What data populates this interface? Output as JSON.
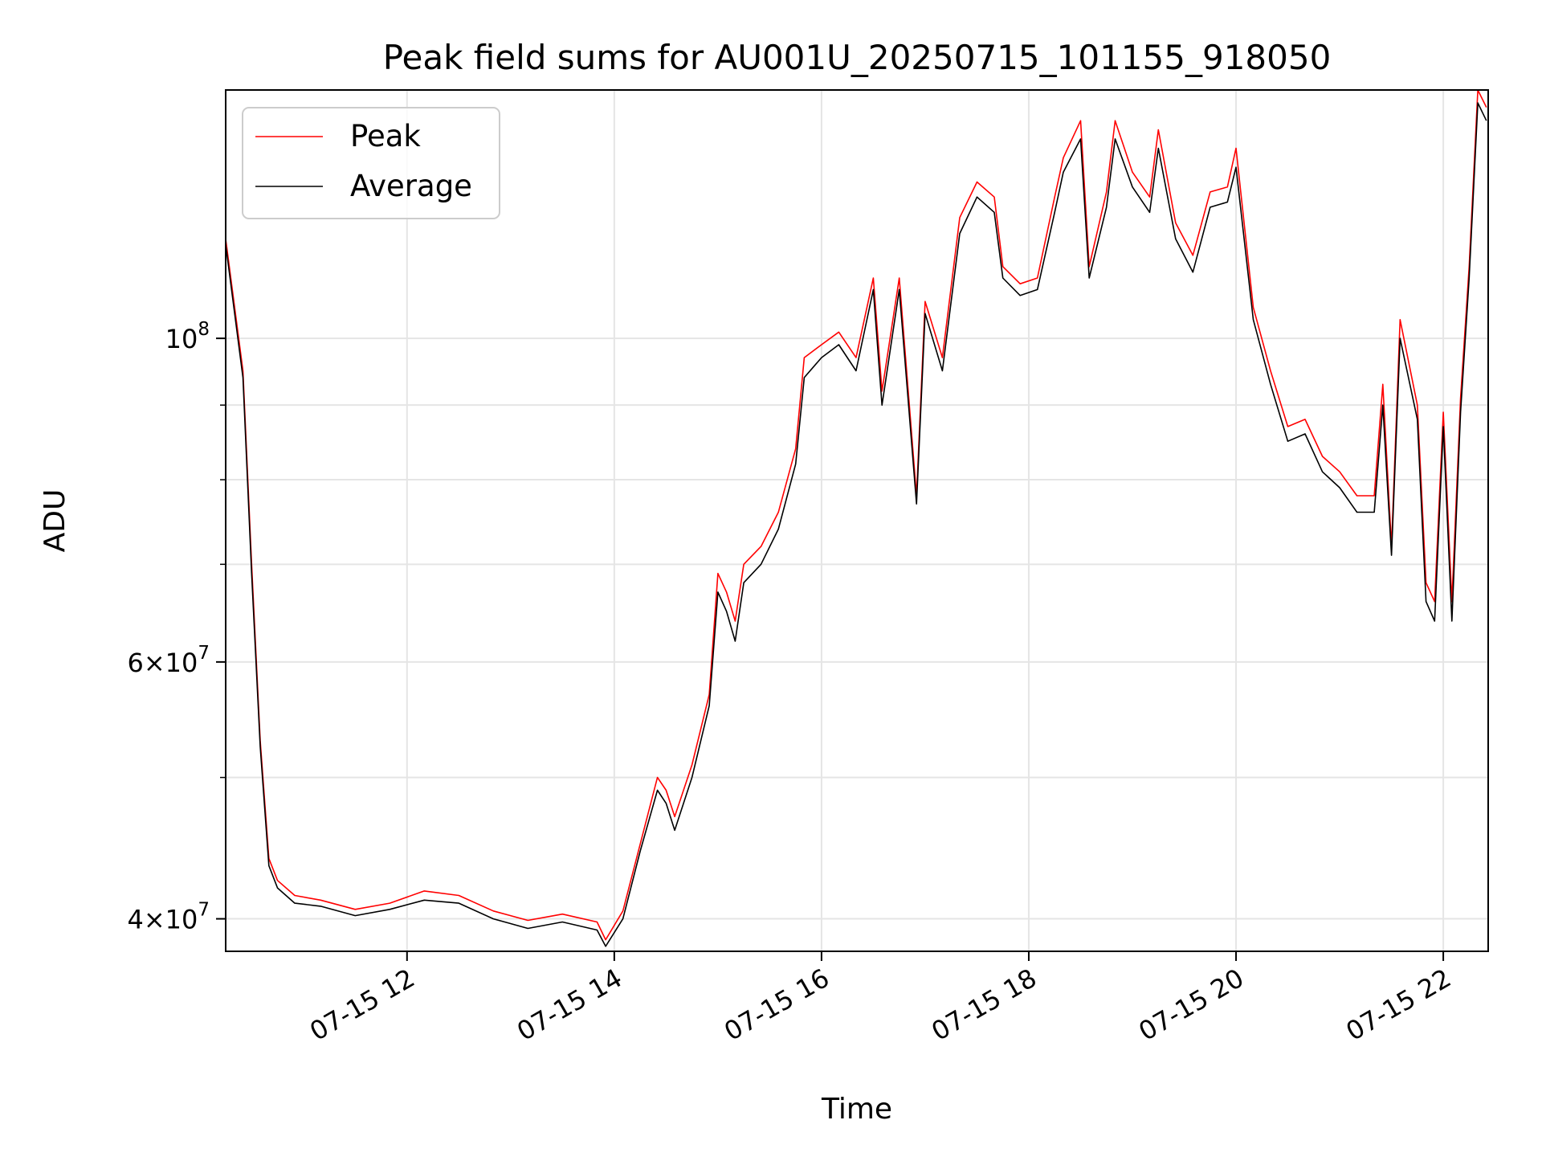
{
  "chart_data": {
    "type": "line",
    "title": "Peak field sums for AU001U_20250715_101155_918050",
    "xlabel": "Time",
    "ylabel": "ADU",
    "yscale": "log",
    "grid": true,
    "legend_position": "top-left",
    "xlim": [
      "2025-07-15 10:15",
      "2025-07-15 22:26"
    ],
    "ylim": [
      38000000,
      148000000
    ],
    "x_ticks": [
      {
        "value": "2025-07-15 12:00",
        "label": "07-15 12"
      },
      {
        "value": "2025-07-15 14:00",
        "label": "07-15 14"
      },
      {
        "value": "2025-07-15 16:00",
        "label": "07-15 16"
      },
      {
        "value": "2025-07-15 18:00",
        "label": "07-15 18"
      },
      {
        "value": "2025-07-15 20:00",
        "label": "07-15 20"
      },
      {
        "value": "2025-07-15 22:00",
        "label": "07-15 22"
      }
    ],
    "y_ticks": [
      {
        "value": 40000000,
        "base": "4",
        "mult": "×",
        "exp_base": "10",
        "exp": "7"
      },
      {
        "value": 60000000,
        "base": "6",
        "mult": "×",
        "exp_base": "10",
        "exp": "7"
      },
      {
        "value": 100000000,
        "base": "",
        "mult": "",
        "exp_base": "10",
        "exp": "8"
      }
    ],
    "y_minor_ticks": [
      50000000,
      70000000,
      80000000,
      90000000
    ],
    "series": [
      {
        "name": "Peak",
        "color": "#ff0000",
        "x": [
          "2025-07-15 10:15",
          "2025-07-15 10:25",
          "2025-07-15 10:30",
          "2025-07-15 10:35",
          "2025-07-15 10:40",
          "2025-07-15 10:45",
          "2025-07-15 10:55",
          "2025-07-15 11:10",
          "2025-07-15 11:30",
          "2025-07-15 11:50",
          "2025-07-15 12:10",
          "2025-07-15 12:30",
          "2025-07-15 12:50",
          "2025-07-15 13:10",
          "2025-07-15 13:30",
          "2025-07-15 13:50",
          "2025-07-15 13:55",
          "2025-07-15 14:05",
          "2025-07-15 14:15",
          "2025-07-15 14:25",
          "2025-07-15 14:30",
          "2025-07-15 14:35",
          "2025-07-15 14:45",
          "2025-07-15 14:55",
          "2025-07-15 15:00",
          "2025-07-15 15:05",
          "2025-07-15 15:10",
          "2025-07-15 15:15",
          "2025-07-15 15:25",
          "2025-07-15 15:35",
          "2025-07-15 15:45",
          "2025-07-15 15:50",
          "2025-07-15 16:00",
          "2025-07-15 16:10",
          "2025-07-15 16:20",
          "2025-07-15 16:30",
          "2025-07-15 16:35",
          "2025-07-15 16:45",
          "2025-07-15 16:55",
          "2025-07-15 17:00",
          "2025-07-15 17:10",
          "2025-07-15 17:20",
          "2025-07-15 17:30",
          "2025-07-15 17:40",
          "2025-07-15 17:45",
          "2025-07-15 17:55",
          "2025-07-15 18:05",
          "2025-07-15 18:15",
          "2025-07-15 18:20",
          "2025-07-15 18:30",
          "2025-07-15 18:35",
          "2025-07-15 18:45",
          "2025-07-15 18:50",
          "2025-07-15 19:00",
          "2025-07-15 19:10",
          "2025-07-15 19:15",
          "2025-07-15 19:25",
          "2025-07-15 19:35",
          "2025-07-15 19:45",
          "2025-07-15 19:55",
          "2025-07-15 20:00",
          "2025-07-15 20:10",
          "2025-07-15 20:20",
          "2025-07-15 20:30",
          "2025-07-15 20:40",
          "2025-07-15 20:50",
          "2025-07-15 21:00",
          "2025-07-15 21:10",
          "2025-07-15 21:20",
          "2025-07-15 21:25",
          "2025-07-15 21:30",
          "2025-07-15 21:35",
          "2025-07-15 21:45",
          "2025-07-15 21:50",
          "2025-07-15 21:55",
          "2025-07-15 22:00",
          "2025-07-15 22:05",
          "2025-07-15 22:10",
          "2025-07-15 22:15",
          "2025-07-15 22:20",
          "2025-07-15 22:25"
        ],
        "y": [
          117000000,
          95000000,
          70000000,
          53000000,
          44000000,
          42500000,
          41500000,
          41200000,
          40600000,
          41000000,
          41800000,
          41500000,
          40500000,
          39900000,
          40300000,
          39800000,
          38700000,
          40500000,
          45000000,
          50000000,
          49000000,
          47000000,
          51000000,
          57000000,
          69000000,
          67000000,
          64000000,
          70000000,
          72000000,
          76000000,
          84000000,
          97000000,
          99000000,
          101000000,
          97000000,
          110000000,
          92000000,
          110000000,
          78000000,
          106000000,
          97000000,
          121000000,
          128000000,
          125000000,
          112000000,
          109000000,
          110000000,
          125000000,
          133000000,
          141000000,
          112000000,
          126000000,
          141000000,
          130000000,
          125000000,
          139000000,
          120000000,
          114000000,
          126000000,
          127000000,
          135000000,
          105000000,
          95000000,
          87000000,
          88000000,
          83000000,
          81000000,
          78000000,
          78000000,
          93000000,
          72000000,
          103000000,
          90000000,
          68000000,
          66000000,
          89000000,
          66000000,
          91000000,
          112000000,
          148000000,
          144000000
        ]
      },
      {
        "name": "Average",
        "color": "#000000",
        "x": [
          "2025-07-15 10:15",
          "2025-07-15 10:25",
          "2025-07-15 10:30",
          "2025-07-15 10:35",
          "2025-07-15 10:40",
          "2025-07-15 10:45",
          "2025-07-15 10:55",
          "2025-07-15 11:10",
          "2025-07-15 11:30",
          "2025-07-15 11:50",
          "2025-07-15 12:10",
          "2025-07-15 12:30",
          "2025-07-15 12:50",
          "2025-07-15 13:10",
          "2025-07-15 13:30",
          "2025-07-15 13:50",
          "2025-07-15 13:55",
          "2025-07-15 14:05",
          "2025-07-15 14:15",
          "2025-07-15 14:25",
          "2025-07-15 14:30",
          "2025-07-15 14:35",
          "2025-07-15 14:45",
          "2025-07-15 14:55",
          "2025-07-15 15:00",
          "2025-07-15 15:05",
          "2025-07-15 15:10",
          "2025-07-15 15:15",
          "2025-07-15 15:25",
          "2025-07-15 15:35",
          "2025-07-15 15:45",
          "2025-07-15 15:50",
          "2025-07-15 16:00",
          "2025-07-15 16:10",
          "2025-07-15 16:20",
          "2025-07-15 16:30",
          "2025-07-15 16:35",
          "2025-07-15 16:45",
          "2025-07-15 16:55",
          "2025-07-15 17:00",
          "2025-07-15 17:10",
          "2025-07-15 17:20",
          "2025-07-15 17:30",
          "2025-07-15 17:40",
          "2025-07-15 17:45",
          "2025-07-15 17:55",
          "2025-07-15 18:05",
          "2025-07-15 18:15",
          "2025-07-15 18:20",
          "2025-07-15 18:30",
          "2025-07-15 18:35",
          "2025-07-15 18:45",
          "2025-07-15 18:50",
          "2025-07-15 19:00",
          "2025-07-15 19:10",
          "2025-07-15 19:15",
          "2025-07-15 19:25",
          "2025-07-15 19:35",
          "2025-07-15 19:45",
          "2025-07-15 19:55",
          "2025-07-15 20:00",
          "2025-07-15 20:10",
          "2025-07-15 20:20",
          "2025-07-15 20:30",
          "2025-07-15 20:40",
          "2025-07-15 20:50",
          "2025-07-15 21:00",
          "2025-07-15 21:10",
          "2025-07-15 21:20",
          "2025-07-15 21:25",
          "2025-07-15 21:30",
          "2025-07-15 21:35",
          "2025-07-15 21:45",
          "2025-07-15 21:50",
          "2025-07-15 21:55",
          "2025-07-15 22:00",
          "2025-07-15 22:05",
          "2025-07-15 22:10",
          "2025-07-15 22:15",
          "2025-07-15 22:20",
          "2025-07-15 22:25"
        ],
        "y": [
          116000000,
          94000000,
          69000000,
          52500000,
          43500000,
          42000000,
          41000000,
          40800000,
          40200000,
          40600000,
          41200000,
          41000000,
          40000000,
          39400000,
          39800000,
          39300000,
          38300000,
          40000000,
          44500000,
          49000000,
          48000000,
          46000000,
          50000000,
          56000000,
          67000000,
          65000000,
          62000000,
          68000000,
          70000000,
          74000000,
          82000000,
          94000000,
          97000000,
          99000000,
          95000000,
          108000000,
          90000000,
          108000000,
          77000000,
          104000000,
          95000000,
          118000000,
          125000000,
          122000000,
          110000000,
          107000000,
          108000000,
          122000000,
          130000000,
          137000000,
          110000000,
          123000000,
          137000000,
          127000000,
          122000000,
          135000000,
          117000000,
          111000000,
          123000000,
          124000000,
          131000000,
          103000000,
          93000000,
          85000000,
          86000000,
          81000000,
          79000000,
          76000000,
          76000000,
          90000000,
          71000000,
          100000000,
          88000000,
          66000000,
          64000000,
          87000000,
          64000000,
          89000000,
          110000000,
          145000000,
          141000000
        ]
      }
    ]
  }
}
